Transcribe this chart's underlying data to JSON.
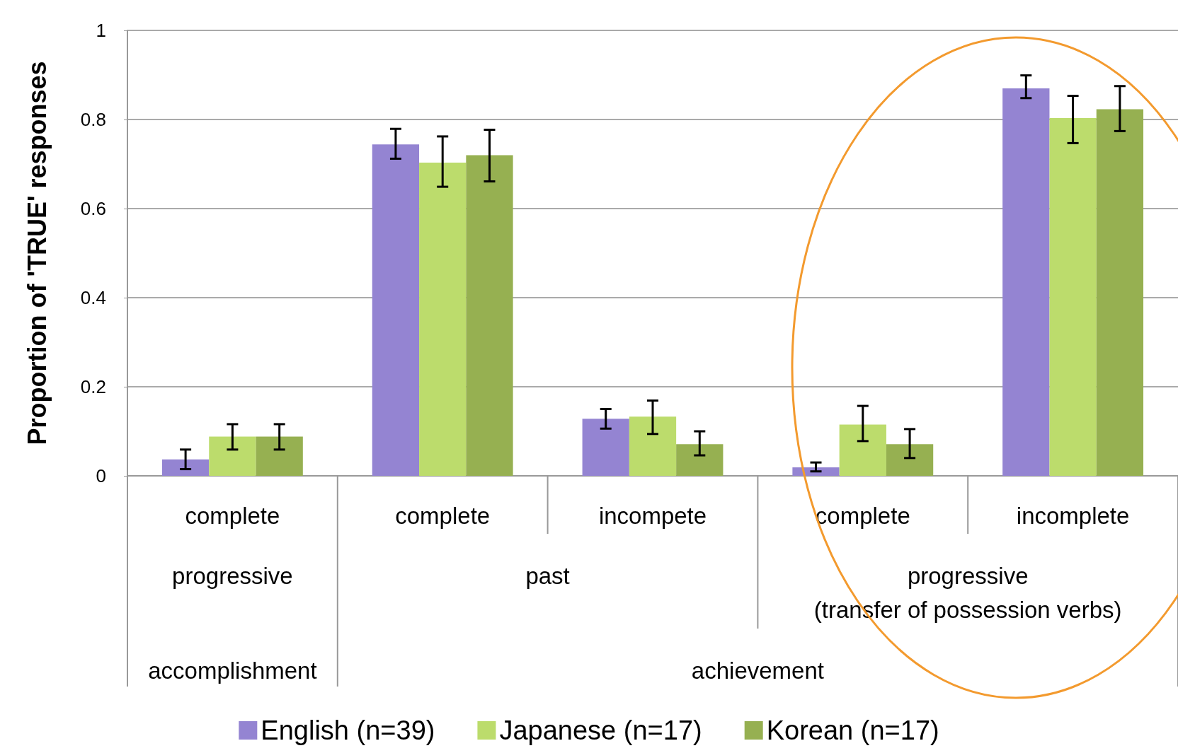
{
  "chart_data": {
    "type": "bar",
    "ylabel": "Proportion of 'TRUE' responses",
    "categories": [
      "complete",
      "complete",
      "incompete",
      "complete",
      "incomplete"
    ],
    "series": [
      {
        "name": "English (n=39)",
        "color": "#9484d2",
        "values": [
          0.037,
          0.744,
          0.128,
          0.019,
          0.87
        ],
        "errors": [
          [
            0.015,
            0.059
          ],
          [
            0.712,
            0.779
          ],
          [
            0.106,
            0.15
          ],
          [
            0.01,
            0.03
          ],
          [
            0.848,
            0.899
          ]
        ]
      },
      {
        "name": "Japanese (n=17)",
        "color": "#bcdc6c",
        "values": [
          0.088,
          0.703,
          0.133,
          0.115,
          0.803
        ],
        "errors": [
          [
            0.059,
            0.116
          ],
          [
            0.649,
            0.762
          ],
          [
            0.094,
            0.169
          ],
          [
            0.078,
            0.157
          ],
          [
            0.747,
            0.853
          ]
        ]
      },
      {
        "name": "Korean (n=17)",
        "color": "#96b051",
        "values": [
          0.088,
          0.72,
          0.071,
          0.071,
          0.823
        ],
        "errors": [
          [
            0.059,
            0.116
          ],
          [
            0.661,
            0.777
          ],
          [
            0.046,
            0.1
          ],
          [
            0.04,
            0.105
          ],
          [
            0.774,
            0.875
          ]
        ]
      }
    ],
    "annotations": [
      "progressive",
      "past",
      "progressive\n(transfer of possession verbs)",
      "accomplishment",
      "achievement"
    ],
    "ylim": [
      0,
      1
    ],
    "yticks": [
      0,
      0.2,
      0.4,
      0.6,
      0.8,
      1
    ],
    "grid": "y",
    "legend": "bottom"
  }
}
